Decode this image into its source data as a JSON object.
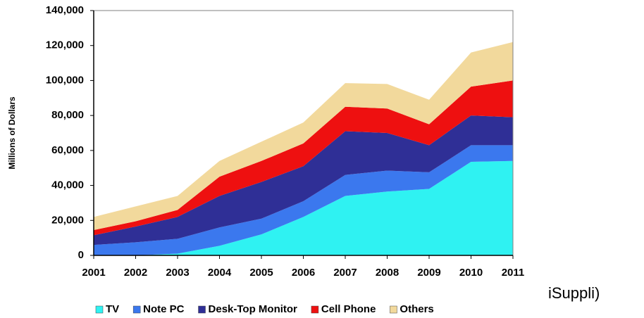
{
  "chart_data": {
    "type": "stacked_area",
    "y_label": "Millions of Dollars",
    "categories": [
      "2001",
      "2002",
      "2003",
      "2004",
      "2005",
      "2006",
      "2007",
      "2008",
      "2009",
      "2010",
      "2011"
    ],
    "series": [
      {
        "name": "TV",
        "color": "#2ff2f2",
        "values": [
          0,
          0,
          1000,
          5500,
          12000,
          22000,
          34000,
          36500,
          38000,
          53500,
          54000
        ]
      },
      {
        "name": "Note PC",
        "color": "#3b78ee",
        "values": [
          6000,
          7500,
          8500,
          10500,
          9000,
          9000,
          12000,
          12000,
          9500,
          9500,
          9000
        ]
      },
      {
        "name": "Desk-Top Monitor",
        "color": "#2f2f96",
        "values": [
          5500,
          9000,
          12500,
          18000,
          21000,
          20000,
          25000,
          21500,
          15500,
          17000,
          16000
        ]
      },
      {
        "name": "Cell Phone",
        "color": "#ee1010",
        "values": [
          3000,
          3000,
          4000,
          11000,
          12000,
          13000,
          14000,
          14000,
          12000,
          16500,
          21000
        ]
      },
      {
        "name": "Others",
        "color": "#f2d99c",
        "values": [
          7500,
          8500,
          8000,
          9000,
          11000,
          12000,
          13500,
          14000,
          14000,
          19500,
          22000
        ]
      }
    ],
    "ylim": [
      0,
      140000
    ],
    "yticks": [
      0,
      {
        "value": 20000,
        "label": "20,000"
      },
      {
        "value": 40000,
        "label": "40,000"
      },
      {
        "value": 60000,
        "label": "60,000"
      },
      {
        "value": 80000,
        "label": "80,000"
      },
      {
        "value": 100000,
        "label": "100,000"
      },
      {
        "value": 120000,
        "label": "120,000"
      },
      {
        "value": 140000,
        "label": "140,000"
      }
    ],
    "annotation": "iSuppli)"
  }
}
